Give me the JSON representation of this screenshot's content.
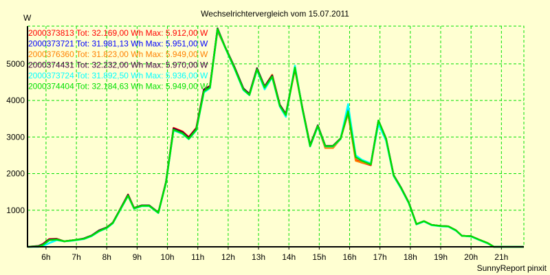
{
  "chart_data": {
    "type": "line",
    "title": "Wechselrichtervergleich vom 15.07.2011",
    "ylabel": "W",
    "xlabel": "",
    "footer": "SunnyReport pinxit",
    "xlim": [
      5.39,
      21.74
    ],
    "ylim": [
      0,
      6030
    ],
    "grid": true,
    "legend_placement": "top-left",
    "x_ticks": [
      6,
      7,
      8,
      9,
      10,
      11,
      12,
      13,
      14,
      15,
      16,
      17,
      18,
      19,
      20,
      21
    ],
    "x_tick_labels": [
      "6h",
      "7h",
      "8h",
      "9h",
      "10h",
      "11h",
      "12h",
      "13h",
      "14h",
      "15h",
      "16h",
      "17h",
      "18h",
      "19h",
      "20h",
      "21h"
    ],
    "y_ticks": [
      1000,
      2000,
      3000,
      4000,
      5000
    ],
    "y_tick_labels": [
      "1000",
      "2000",
      "3000",
      "4000",
      "5000"
    ],
    "x": [
      5.4,
      5.75,
      5.9,
      6.1,
      6.35,
      6.6,
      6.8,
      7.0,
      7.25,
      7.5,
      7.75,
      8.0,
      8.2,
      8.4,
      8.7,
      8.9,
      9.15,
      9.4,
      9.7,
      9.95,
      10.2,
      10.5,
      10.7,
      10.95,
      11.2,
      11.4,
      11.65,
      11.9,
      12.2,
      12.5,
      12.7,
      12.95,
      13.2,
      13.45,
      13.7,
      13.9,
      14.2,
      14.45,
      14.7,
      14.95,
      15.2,
      15.45,
      15.7,
      15.95,
      16.2,
      16.4,
      16.7,
      16.95,
      17.2,
      17.45,
      17.7,
      17.95,
      18.2,
      18.45,
      18.7,
      19.0,
      19.25,
      19.5,
      19.7,
      20.0,
      20.25,
      20.55,
      20.75,
      21.74
    ],
    "series": [
      {
        "name": "2000373813",
        "legend": "2000373813 Tot: 32.169,00 Wh Max: 5.912,00 W",
        "color": "#ff0000",
        "values": [
          0,
          20,
          80,
          210,
          220,
          150,
          170,
          190,
          220,
          300,
          440,
          530,
          660,
          960,
          1430,
          1060,
          1130,
          1120,
          930,
          1760,
          3250,
          3150,
          3000,
          3250,
          4300,
          4400,
          5900,
          5450,
          4920,
          4320,
          4170,
          4870,
          4380,
          4700,
          3880,
          3620,
          4880,
          3770,
          2780,
          3300,
          2700,
          2700,
          2950,
          3650,
          2380,
          2300,
          2230,
          3430,
          2950,
          1950,
          1600,
          1200,
          610,
          700,
          600,
          570,
          560,
          450,
          300,
          290,
          200,
          100,
          0,
          0
        ]
      },
      {
        "name": "2000373721",
        "legend": "2000373721 Tot: 31.981,13 Wh Max: 5.951,00 W",
        "color": "#0000ff",
        "values": [
          0,
          10,
          50,
          180,
          200,
          150,
          170,
          190,
          220,
          300,
          430,
          520,
          650,
          950,
          1400,
          1050,
          1120,
          1120,
          930,
          1750,
          3200,
          3100,
          2950,
          3200,
          4250,
          4350,
          5950,
          5450,
          4900,
          4300,
          4150,
          4850,
          4350,
          4650,
          3850,
          3600,
          4900,
          3750,
          2750,
          3300,
          2750,
          2750,
          2950,
          3800,
          2480,
          2370,
          2270,
          3440,
          2950,
          1950,
          1600,
          1200,
          620,
          700,
          600,
          570,
          560,
          450,
          300,
          290,
          200,
          100,
          0,
          0
        ]
      },
      {
        "name": "2000376360",
        "legend": "2000376360 Tot: 31.823,00 Wh Max: 5.949,00 W",
        "color": "#ff8000",
        "values": [
          0,
          10,
          50,
          190,
          200,
          150,
          170,
          190,
          220,
          300,
          430,
          520,
          650,
          950,
          1400,
          1050,
          1120,
          1120,
          930,
          1750,
          3200,
          3100,
          2950,
          3200,
          4250,
          4350,
          5949,
          5450,
          4900,
          4300,
          4150,
          4850,
          4350,
          4700,
          3850,
          3600,
          4850,
          3750,
          2750,
          3300,
          2700,
          2700,
          2950,
          3650,
          2350,
          2300,
          2250,
          3400,
          2950,
          1950,
          1600,
          1200,
          620,
          700,
          600,
          570,
          560,
          450,
          300,
          290,
          200,
          100,
          0,
          0
        ]
      },
      {
        "name": "2000374431",
        "legend": "2000374431 Tot: 32.232,00 Wh Max: 5.970,00 W",
        "color": "#400040",
        "values": [
          0,
          25,
          70,
          200,
          210,
          150,
          170,
          190,
          230,
          310,
          450,
          530,
          660,
          960,
          1420,
          1060,
          1130,
          1130,
          940,
          1770,
          3230,
          3130,
          2980,
          3230,
          4300,
          4380,
          5970,
          5460,
          4930,
          4330,
          4180,
          4880,
          4380,
          4680,
          3880,
          3630,
          4880,
          3770,
          2770,
          3320,
          2760,
          2760,
          2960,
          3700,
          2460,
          2360,
          2260,
          3450,
          2960,
          1960,
          1610,
          1210,
          620,
          700,
          600,
          570,
          560,
          450,
          300,
          290,
          200,
          100,
          0,
          0
        ]
      },
      {
        "name": "2000373724",
        "legend": "2000373724 Tot: 31.892,50 Wh Max: 5.936,00 W",
        "color": "#00ffff",
        "values": [
          0,
          0,
          20,
          100,
          180,
          150,
          160,
          180,
          210,
          290,
          420,
          510,
          640,
          940,
          1390,
          1040,
          1110,
          1110,
          920,
          1740,
          3180,
          3080,
          2940,
          3180,
          4220,
          4330,
          5936,
          5440,
          4880,
          4280,
          4140,
          4830,
          4300,
          4630,
          3830,
          3550,
          4950,
          3730,
          2740,
          3280,
          2740,
          2740,
          2940,
          3900,
          2500,
          2380,
          2280,
          3350,
          2900,
          1930,
          1580,
          1190,
          610,
          690,
          590,
          560,
          550,
          440,
          300,
          280,
          190,
          90,
          0,
          0
        ]
      },
      {
        "name": "2000374404",
        "legend": "2000374404 Tot: 32.184,63 Wh Max: 5.949,00 W",
        "color": "#00e000",
        "values": [
          0,
          10,
          50,
          180,
          200,
          150,
          170,
          190,
          220,
          300,
          430,
          520,
          650,
          950,
          1400,
          1050,
          1120,
          1120,
          930,
          1750,
          3200,
          3100,
          2950,
          3200,
          4250,
          4350,
          5949,
          5450,
          4900,
          4300,
          4150,
          4850,
          4350,
          4650,
          3850,
          3600,
          4900,
          3750,
          2750,
          3300,
          2750,
          2750,
          2950,
          3700,
          2450,
          2350,
          2250,
          3450,
          2950,
          1950,
          1600,
          1200,
          620,
          700,
          600,
          570,
          560,
          450,
          300,
          290,
          200,
          100,
          0,
          0
        ]
      }
    ]
  }
}
